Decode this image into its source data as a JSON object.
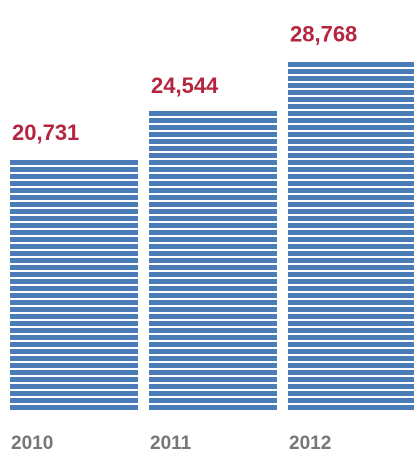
{
  "chart_data": {
    "type": "bar",
    "categories": [
      "2010",
      "2011",
      "2012"
    ],
    "values": [
      20731,
      24544,
      28768
    ],
    "value_labels": [
      "20,731",
      "24,544",
      "28,768"
    ],
    "colors": {
      "bar": "#4a7db8",
      "value_label": "#b5253f",
      "category_label": "#777777"
    }
  }
}
